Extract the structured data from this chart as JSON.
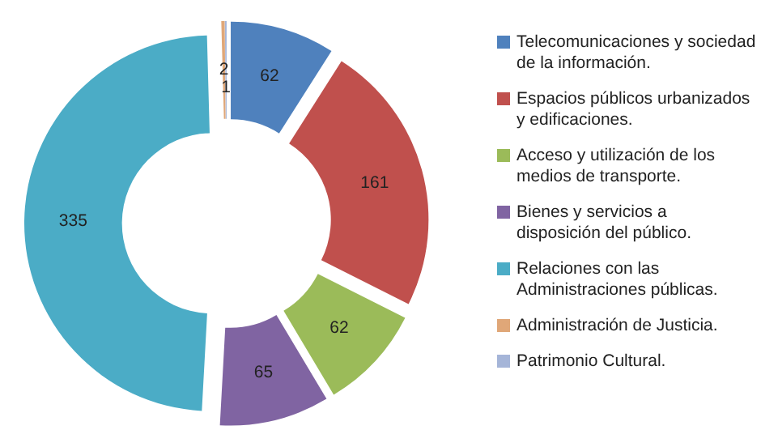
{
  "chart_data": {
    "type": "donut",
    "categories": [
      "Telecomunicaciones y sociedad de la información.",
      "Espacios públicos urbanizados y edificaciones.",
      "Acceso y utilización de los medios de transporte.",
      "Bienes y servicios a disposición del público.",
      "Relaciones con las Administraciones públicas.",
      "Administración de Justicia.",
      "Patrimonio Cultural."
    ],
    "values": [
      62,
      161,
      62,
      65,
      335,
      2,
      1
    ],
    "colors": [
      "#4f81bd",
      "#c0504d",
      "#9bbb59",
      "#8064a2",
      "#4bacc6",
      "#e0a778",
      "#a5b5d8"
    ],
    "data_labels": true,
    "legend": "right"
  }
}
